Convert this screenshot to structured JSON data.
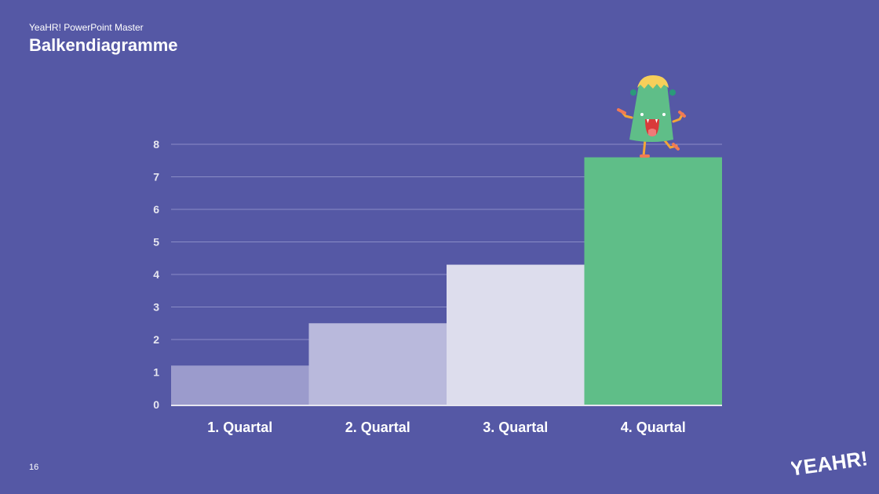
{
  "slide": {
    "subtitle": "YeaHR! PowerPoint Master",
    "title": "Balkendiagramme",
    "page_number": "16",
    "logo_text": "YEAHR!"
  },
  "colors": {
    "background": "#5558a5",
    "grid": "#8a8dc6",
    "axis": "#e6e6f0",
    "bar_colors": [
      "#9b9bcc",
      "#b9b9dc",
      "#dddded",
      "#5fbe88"
    ]
  },
  "chart_data": {
    "type": "bar",
    "categories": [
      "1. Quartal",
      "2. Quartal",
      "3. Quartal",
      "4. Quartal"
    ],
    "values": [
      1.2,
      2.5,
      4.3,
      7.6
    ],
    "yticks": [
      0,
      1,
      2,
      3,
      4,
      5,
      6,
      7,
      8
    ],
    "ylim": [
      0,
      8
    ],
    "grid": true,
    "legend": "none"
  }
}
